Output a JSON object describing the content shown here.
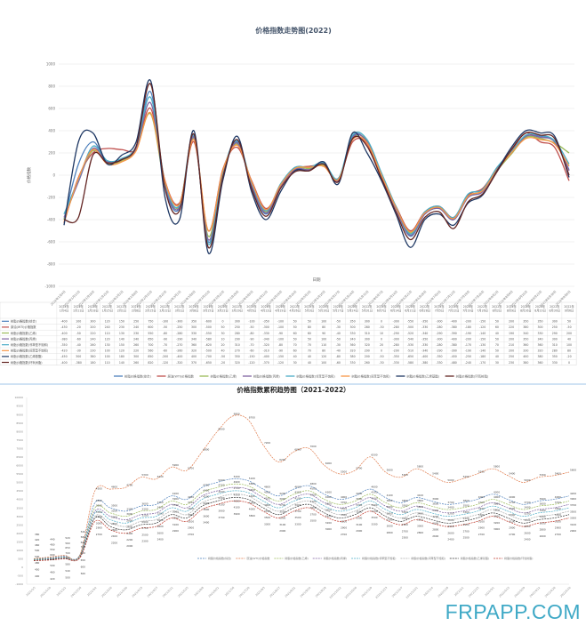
{
  "chart_data": [
    {
      "type": "line",
      "title": "价格指数走势图(2022)",
      "xlabel": "日期",
      "ylabel": "价格指数",
      "ylim": [
        -1000,
        1000
      ],
      "yticks": [
        1000,
        800,
        600,
        400,
        200,
        0,
        -200,
        -400,
        -600,
        -800,
        -1000
      ],
      "grid": true,
      "legend_placement": "bottom-table",
      "categories": [
        "2022年1月4日",
        "2022年1月11日",
        "2022年1月18日",
        "2022年1月25日",
        "2022年2月1日",
        "2022年2月8日",
        "2022年2月15日",
        "2022年2月22日",
        "2022年3月1日",
        "2022年3月8日",
        "2022年3月15日",
        "2022年3月22日",
        "2022年3月29日",
        "2022年4月5日",
        "2022年4月12日",
        "2022年4月19日",
        "2022年4月26日",
        "2022年5月3日",
        "2022年5月10日",
        "2022年5月17日",
        "2022年5月24日",
        "2022年5月31日",
        "2022年6月7日",
        "2022年6月14日",
        "2022年6月21日",
        "2022年6月28日",
        "2022年7月5日",
        "2022年7月12日",
        "2022年7月19日",
        "2022年7月26日",
        "2022年8月2日",
        "2022年8月9日",
        "2022年8月16日",
        "2022年8月23日",
        "2022年8月30日",
        "2022年9月6日"
      ],
      "series": [
        {
          "name": "树脂价格指数(综合)",
          "color": "#4f81bd",
          "values": [
            -400,
            100,
            300,
            120,
            150,
            250,
            750,
            -100,
            -300,
            350,
            -600,
            0,
            300,
            -100,
            -350,
            -100,
            50,
            50,
            100,
            -50,
            350,
            300,
            0,
            -300,
            -550,
            -350,
            -300,
            -400,
            -200,
            -150,
            50,
            200,
            350,
            350,
            300,
            50
          ]
        },
        {
          "name": "原油(WTI)价格指数",
          "color": "#c0504d",
          "values": [
            -430,
            -20,
            200,
            240,
            230,
            240,
            600,
            -50,
            -250,
            300,
            -500,
            50,
            250,
            -50,
            -300,
            -100,
            50,
            80,
            80,
            -30,
            300,
            280,
            -30,
            -280,
            -500,
            -330,
            -280,
            -380,
            -180,
            -120,
            60,
            220,
            380,
            300,
            250,
            -50
          ]
        },
        {
          "name": "树脂价格指数(乙烯)",
          "color": "#9bbb59",
          "values": [
            -400,
            -50,
            220,
            110,
            130,
            230,
            550,
            -80,
            -280,
            330,
            -550,
            30,
            280,
            -80,
            -330,
            -90,
            60,
            60,
            90,
            -40,
            330,
            310,
            10,
            -290,
            -520,
            -340,
            -290,
            -390,
            -190,
            -140,
            40,
            190,
            340,
            330,
            290,
            200
          ]
        },
        {
          "name": "树脂价格指数(丙烯)",
          "color": "#8064a2",
          "values": [
            -380,
            -60,
            240,
            120,
            140,
            240,
            650,
            -90,
            -290,
            340,
            -580,
            10,
            290,
            -90,
            -340,
            -100,
            50,
            50,
            100,
            -50,
            340,
            300,
            0,
            -300,
            -540,
            -350,
            -300,
            -400,
            -200,
            -150,
            50,
            200,
            350,
            340,
            300,
            40
          ]
        },
        {
          "name": "树脂价格指数(邻苯型不饱和)",
          "color": "#4bacc6",
          "values": [
            -350,
            -40,
            260,
            130,
            150,
            260,
            700,
            -70,
            -270,
            360,
            -620,
            20,
            310,
            -70,
            -320,
            -80,
            70,
            70,
            110,
            -30,
            360,
            320,
            20,
            -280,
            -530,
            -330,
            -280,
            -380,
            -170,
            -130,
            70,
            210,
            360,
            360,
            310,
            100
          ]
        },
        {
          "name": "树脂价格指数(间苯型不饱和)",
          "color": "#f79646",
          "values": [
            -420,
            -30,
            230,
            100,
            120,
            220,
            560,
            -60,
            -260,
            320,
            -500,
            40,
            270,
            -60,
            -310,
            -90,
            60,
            70,
            80,
            -40,
            320,
            290,
            0,
            -290,
            -510,
            -340,
            -290,
            -390,
            -190,
            -140,
            50,
            200,
            330,
            320,
            280,
            80
          ]
        },
        {
          "name": "树脂价格指数(乙烯基酯)",
          "color": "#1f3864",
          "values": [
            -450,
            300,
            380,
            100,
            180,
            300,
            850,
            -200,
            -400,
            400,
            -700,
            -50,
            350,
            -150,
            -400,
            -150,
            40,
            40,
            120,
            -80,
            380,
            200,
            -50,
            -350,
            -650,
            -400,
            -350,
            -450,
            -250,
            -180,
            40,
            250,
            400,
            380,
            350,
            -20
          ]
        },
        {
          "name": "树脂价格指数(环氧树脂)",
          "color": "#632523",
          "values": [
            -400,
            -380,
            180,
            110,
            140,
            260,
            820,
            -120,
            -320,
            370,
            -650,
            -20,
            320,
            -120,
            -370,
            -120,
            30,
            40,
            100,
            -60,
            330,
            260,
            -30,
            -330,
            -580,
            -380,
            -330,
            -480,
            -240,
            -170,
            30,
            230,
            380,
            360,
            330,
            0
          ]
        }
      ]
    },
    {
      "type": "line",
      "title": "价格指数累积趋势图（2021-2022）",
      "ylim": [
        -1000,
        10000
      ],
      "yticks": [
        10000,
        9500,
        9000,
        8500,
        8000,
        7500,
        7000,
        6500,
        6000,
        5500,
        5000,
        4500,
        4000,
        3500,
        3000,
        2500,
        2000,
        1500,
        1000,
        500,
        0,
        -500,
        -1000
      ],
      "grid": false,
      "legend_placement": "bottom-inside",
      "categories": [
        "2021/1/5",
        "2021/1/19",
        "2021/2/2",
        "2021/2/16",
        "2021/3/2",
        "2021/3/16",
        "2021/3/30",
        "2021/4/13",
        "2021/4/27",
        "2021/5/11",
        "2021/5/25",
        "2021/6/8",
        "2021/6/22",
        "2021/7/6",
        "2021/7/20",
        "2021/8/3",
        "2021/8/17",
        "2021/8/31",
        "2021/9/14",
        "2021/9/28",
        "2021/10/12",
        "2021/10/26",
        "2021/11/9",
        "2021/11/23",
        "2021/12/7",
        "2021/12/21",
        "2022/1/4",
        "2022/1/18",
        "2022/2/1",
        "2022/2/15",
        "2022/3/1",
        "2022/3/15",
        "2022/3/29",
        "2022/4/12",
        "2022/4/26",
        "2022/5/10"
      ],
      "series": [
        {
          "name": "树脂价格指数(综合)",
          "color": "#4f81bd",
          "values": [
            500,
            550,
            650,
            700,
            3800,
            3500,
            3300,
            3600,
            3700,
            4200,
            4000,
            4700,
            5000,
            5200,
            5100,
            4600,
            4200,
            4600,
            4800,
            4300,
            4000,
            4200,
            4600,
            4100,
            3800,
            4100,
            3900,
            3700,
            3800,
            4000,
            4300,
            4000,
            3700,
            3900,
            4000,
            4200
          ]
        },
        {
          "name": "原油(WTI)价格指数",
          "color": "#e07a4a",
          "values": [
            500,
            600,
            700,
            700,
            4500,
            4600,
            4700,
            5300,
            5200,
            5900,
            5700,
            6800,
            8000,
            8900,
            8700,
            7200,
            6200,
            6800,
            7000,
            6000,
            5500,
            5700,
            6500,
            5600,
            5300,
            5800,
            5400,
            5000,
            5200,
            5500,
            5800,
            5400,
            5000,
            5300,
            5400,
            5600
          ]
        },
        {
          "name": "树脂价格指数(乙烯)",
          "color": "#9bbb59",
          "values": [
            480,
            520,
            600,
            650,
            3500,
            3200,
            3000,
            3300,
            3400,
            3900,
            3700,
            4400,
            4700,
            4900,
            4800,
            4300,
            3900,
            4300,
            4500,
            4000,
            3700,
            3900,
            4300,
            3800,
            3500,
            3800,
            3600,
            3400,
            3500,
            3700,
            4000,
            3700,
            3400,
            3600,
            3700,
            3900
          ]
        },
        {
          "name": "树脂价格指数(丙烯)",
          "color": "#8064a2",
          "values": [
            460,
            500,
            580,
            620,
            3300,
            3000,
            2800,
            3100,
            3200,
            3700,
            3500,
            4200,
            4500,
            4700,
            4600,
            4100,
            3700,
            4100,
            4300,
            3800,
            3500,
            3700,
            4100,
            3600,
            3300,
            3600,
            3400,
            3200,
            3300,
            3500,
            3800,
            3500,
            3200,
            3400,
            3500,
            3700
          ]
        },
        {
          "name": "树脂价格指数(邻苯型不饱和)",
          "color": "#4bacc6",
          "values": [
            450,
            480,
            560,
            600,
            3200,
            2800,
            2600,
            2900,
            3000,
            3500,
            3300,
            4000,
            4300,
            4500,
            4400,
            3900,
            3500,
            3900,
            4100,
            3600,
            3300,
            3500,
            3900,
            3400,
            3100,
            3400,
            3200,
            3000,
            3100,
            3300,
            3600,
            3300,
            3000,
            3200,
            3300,
            3500
          ]
        },
        {
          "name": "树脂价格指数(间苯型不饱和)",
          "color": "#aaaaaa",
          "values": [
            420,
            460,
            540,
            580,
            3000,
            2600,
            2400,
            2700,
            2800,
            3300,
            3100,
            3800,
            4100,
            4300,
            4200,
            3700,
            3300,
            3700,
            3900,
            3400,
            3100,
            3300,
            3700,
            3200,
            2900,
            3200,
            3000,
            2800,
            2900,
            3100,
            3400,
            3100,
            2800,
            3000,
            3100,
            3300
          ]
        },
        {
          "name": "树脂价格指数(乙烯基酯)",
          "color": "#333333",
          "values": [
            400,
            440,
            520,
            560,
            2900,
            2400,
            2200,
            2500,
            2600,
            3100,
            2900,
            3600,
            3900,
            4100,
            4000,
            3500,
            3100,
            3500,
            3700,
            3200,
            2900,
            3100,
            3500,
            3000,
            2700,
            3000,
            2800,
            2600,
            2700,
            2900,
            3200,
            2900,
            2600,
            2800,
            2900,
            3100
          ]
        },
        {
          "name": "树脂价格指数(环氧树脂)",
          "color": "#c0392b",
          "values": [
            380,
            420,
            500,
            540,
            2700,
            2200,
            2000,
            2300,
            2400,
            2900,
            2700,
            3400,
            3700,
            3900,
            3800,
            3300,
            2900,
            3300,
            3500,
            3000,
            2700,
            2900,
            3300,
            2800,
            2500,
            2800,
            2600,
            2400,
            2500,
            2700,
            3000,
            2700,
            2400,
            2600,
            2700,
            2900
          ]
        }
      ]
    }
  ],
  "watermark": "FRPAPP.COM"
}
